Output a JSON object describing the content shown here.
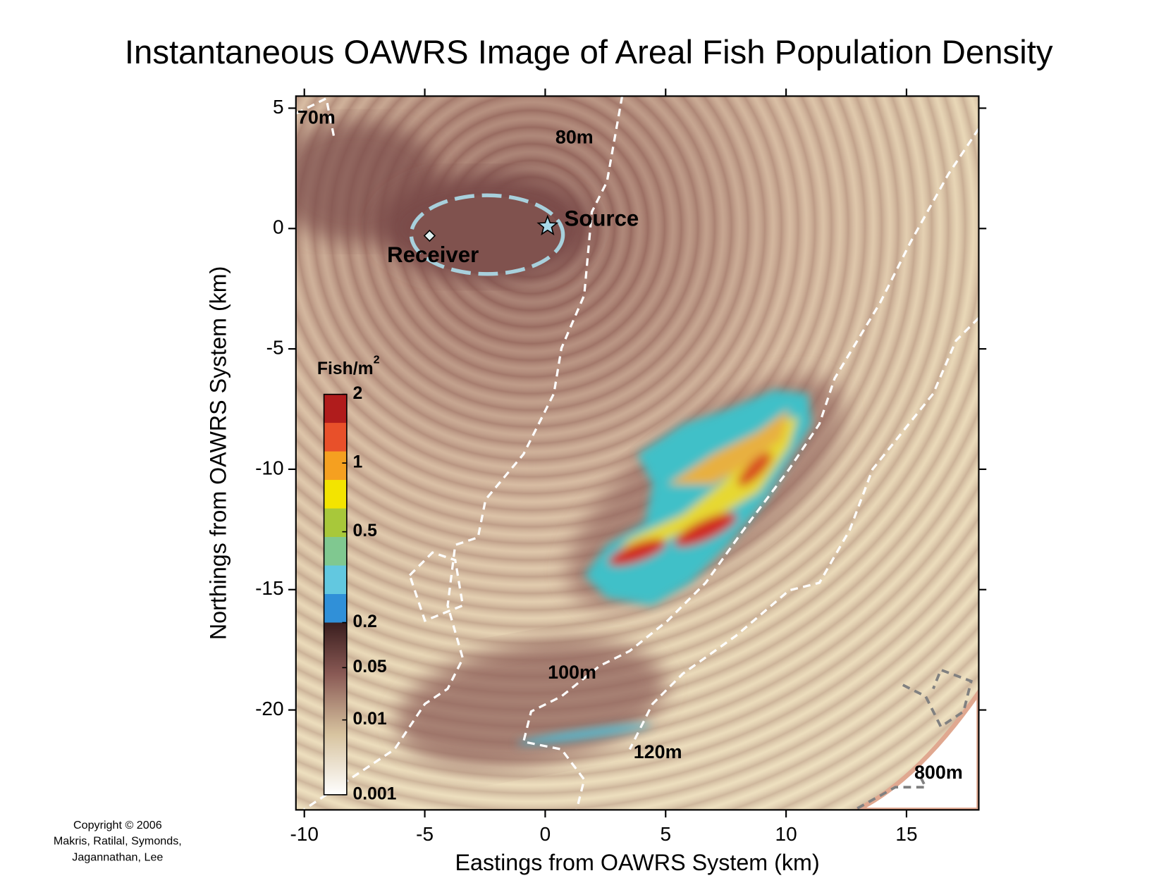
{
  "chart_data": {
    "type": "heatmap",
    "title": "Instantaneous OAWRS Image of Areal Fish Population Density",
    "xlabel": "Eastings from OAWRS System (km)",
    "ylabel": "Northings from OAWRS System (km)",
    "xlim": [
      -10.35,
      18
    ],
    "ylim": [
      -24.15,
      5.5
    ],
    "xticks": [
      -10,
      -5,
      0,
      5,
      10,
      15
    ],
    "yticks": [
      -20,
      -15,
      -10,
      -5,
      0,
      5
    ],
    "points": [
      {
        "name": "Source",
        "x": 0.1,
        "y": 0.1
      },
      {
        "name": "Receiver",
        "x": -4.8,
        "y": -0.3
      }
    ],
    "contour_labels": [
      "70m",
      "80m",
      "100m",
      "120m",
      "800m"
    ],
    "colorbar": {
      "label": "Fish/m",
      "label_superscript": "2",
      "ticks": [
        2,
        1,
        0.5,
        0.2,
        0.05,
        0.01,
        0.001
      ],
      "colors": [
        "#b01c1c",
        "#e8502a",
        "#f5a020",
        "#f3e400",
        "#a8c83a",
        "#80c890",
        "#62c8e0",
        "#3090d8"
      ]
    }
  },
  "copyright": [
    "Copyright © 2006",
    "Makris, Ratilal, Symonds,",
    "Jagannathan, Lee"
  ]
}
